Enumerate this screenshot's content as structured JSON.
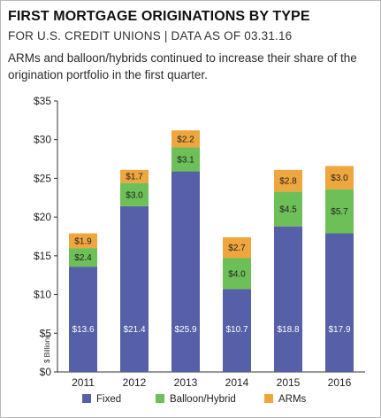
{
  "header": {
    "title": "FIRST MORTGAGE ORIGINATIONS BY TYPE",
    "subtitle": "FOR U.S. CREDIT UNIONS | DATA AS OF 03.31.16",
    "description": "ARMs and balloon/hybrids continued to increase their share of the origination portfolio in the first quarter."
  },
  "chart_data": {
    "type": "bar",
    "stacked": true,
    "categories": [
      "2011",
      "2012",
      "2013",
      "2014",
      "2015",
      "2016"
    ],
    "series": [
      {
        "name": "Fixed",
        "color": "#5660a8",
        "values": [
          13.6,
          21.4,
          25.9,
          10.7,
          18.8,
          17.9
        ],
        "labels": [
          "$13.6",
          "$21.4",
          "$25.9",
          "$10.7",
          "$18.8",
          "$17.9"
        ]
      },
      {
        "name": "Balloon/Hybrid",
        "color": "#6dbf57",
        "values": [
          2.4,
          3.0,
          3.1,
          4.0,
          4.5,
          5.7
        ],
        "labels": [
          "$2.4",
          "$3.0",
          "$3.1",
          "$4.0",
          "$4.5",
          "$5.7"
        ]
      },
      {
        "name": "ARMs",
        "color": "#efa63d",
        "values": [
          1.9,
          1.7,
          2.2,
          2.7,
          2.8,
          3.0
        ],
        "labels": [
          "$1.9",
          "$1.7",
          "$2.2",
          "$2.7",
          "$2.8",
          "$3.0"
        ]
      }
    ],
    "ylabel": "$ Billions",
    "ylim": [
      0,
      35
    ],
    "yticks": [
      "$0",
      "$5",
      "$10",
      "$15",
      "$20",
      "$25",
      "$30",
      "$35"
    ],
    "grid": false,
    "legend": "bottom"
  }
}
